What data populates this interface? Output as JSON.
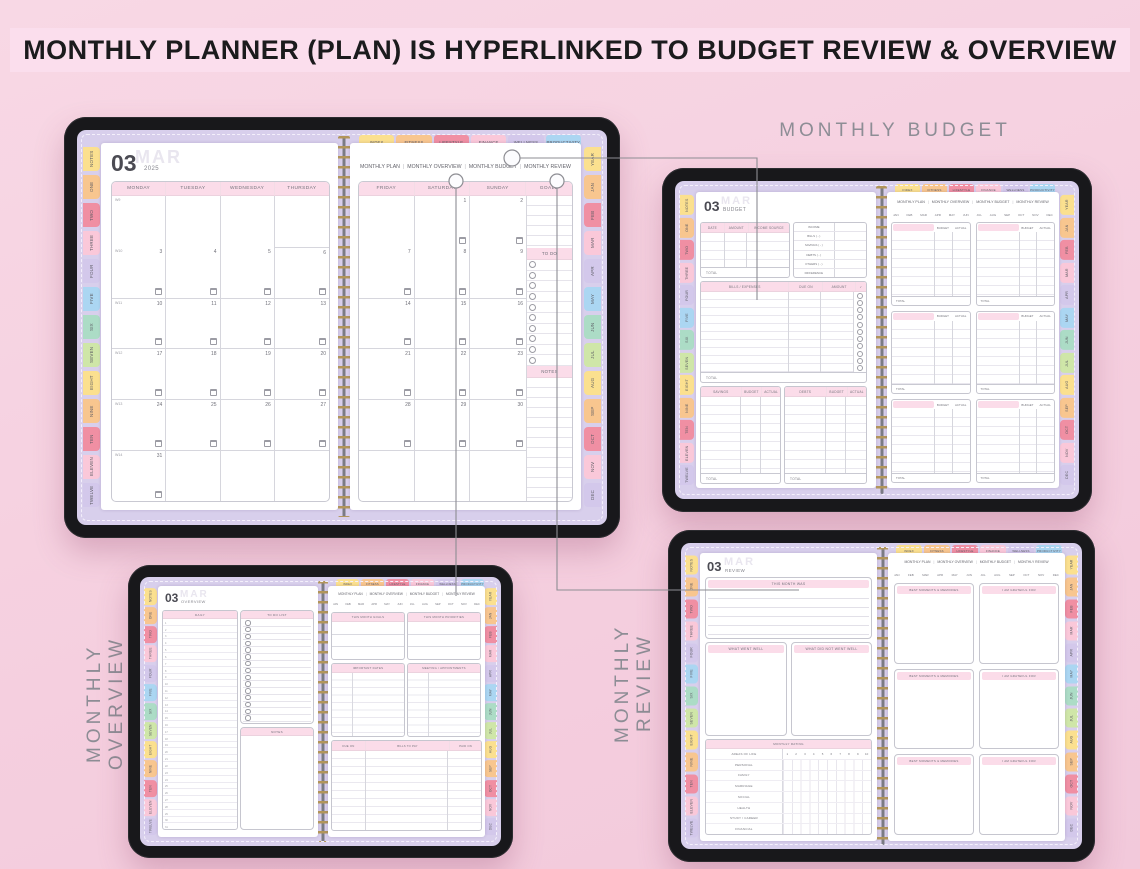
{
  "banner": {
    "title": "MONTHLY PLANNER (PLAN) IS HYPERLINKED TO BUDGET REVIEW & OVERVIEW"
  },
  "section_labels": {
    "budget": "MONTHLY BUDGET",
    "overview": "MONTHLY OVERVIEW",
    "review": "MONTHLY REVIEW"
  },
  "colors": {
    "background": "#F5CFDF",
    "banner_bg": "#FBDEED",
    "banner_text": "#1B1B1D",
    "tablet_frame": "#18181B",
    "cover": "#D8CFEC",
    "page": "#FFFFFF",
    "header_pink": "#FBDCE9",
    "muted_text": "#8D8D95",
    "grid_line": "#C9C9D2",
    "rule_line": "#E9E7EE",
    "ghost_text": "#E9E6EF",
    "connector": "#8D8D93",
    "spiral_coil": "#B2955A",
    "spiral_bar": "#7B7B84",
    "tab_palette": [
      "#FBE08F",
      "#F8C68F",
      "#F08FA3",
      "#FAC8D9",
      "#D3C8EB",
      "#ABD6F2",
      "#ACDCC6",
      "#CFE6A8"
    ]
  },
  "tabs": {
    "top": [
      "INDEX",
      "FITNESS",
      "LIFESTYLE",
      "FINANCE",
      "WELLNESS",
      "PRODUCTIVITY"
    ],
    "side": [
      "NOTES",
      "ONE",
      "TWO",
      "THREE",
      "FOUR",
      "FIVE",
      "SIX",
      "SEVEN",
      "EIGHT",
      "NINE",
      "TEN",
      "ELEVEN",
      "TWELVE"
    ],
    "months_side": [
      "YEAR",
      "JAN",
      "FEB",
      "MAR",
      "APR",
      "MAY",
      "JUN",
      "JUL",
      "AUG",
      "SEP",
      "OCT",
      "NOV",
      "DEC"
    ]
  },
  "nav_links": [
    "MONTHLY PLAN",
    "MONTHLY OVERVIEW",
    "MONTHLY BUDGET",
    "MONTHLY REVIEW"
  ],
  "months_row": [
    "JAN",
    "FEB",
    "MAR",
    "APR",
    "MAY",
    "JUN",
    "JUL",
    "AUG",
    "SEP",
    "OCT",
    "NOV",
    "DEC"
  ],
  "planner": {
    "month_number": "03",
    "month_ghost": "MAR",
    "year": "2025",
    "weekday_headers_left": [
      "MONDAY",
      "TUESDAY",
      "WEDNESDAY",
      "THURSDAY"
    ],
    "weekday_headers_right": [
      "FRIDAY",
      "SATURDAY",
      "SUNDAY"
    ],
    "goals_label": "GOALS",
    "todo_label": "TO DO",
    "notes_label": "NOTES",
    "todo_circle_count": 10,
    "weeks": [
      {
        "label": "W9",
        "left": [
          "",
          "",
          "",
          ""
        ],
        "right": [
          "",
          "1",
          "2"
        ]
      },
      {
        "label": "W10",
        "left": [
          "3",
          "4",
          "5",
          "6"
        ],
        "right": [
          "7",
          "8",
          "9"
        ]
      },
      {
        "label": "W11",
        "left": [
          "10",
          "11",
          "12",
          "13"
        ],
        "right": [
          "14",
          "15",
          "16"
        ]
      },
      {
        "label": "W12",
        "left": [
          "17",
          "18",
          "19",
          "20"
        ],
        "right": [
          "21",
          "22",
          "23"
        ]
      },
      {
        "label": "W13",
        "left": [
          "24",
          "25",
          "26",
          "27"
        ],
        "right": [
          "28",
          "29",
          "30"
        ]
      },
      {
        "label": "W14",
        "left": [
          "31",
          "",
          "",
          ""
        ],
        "right": [
          "",
          "",
          ""
        ]
      }
    ]
  },
  "budget": {
    "month_number": "03",
    "page_title": "BUDGET",
    "month_ghost": "MAR",
    "income_headers": [
      "DATE",
      "AMOUNT",
      "INCOME SOURCE"
    ],
    "summary_rows": [
      "INCOME",
      "BILLS ( - )",
      "SAVINGS ( - )",
      "DEBTS ( - )",
      "OTHERS ( - )",
      "DIFFERENCE"
    ],
    "bills_headers": [
      "BILLS / EXPENSES",
      "DUE ON",
      "AMOUNT",
      "✓"
    ],
    "bills_check_count": 11,
    "savings_headers": [
      "SAVINGS",
      "BUDGET",
      "ACTUAL"
    ],
    "debts_headers": [
      "DEBTS",
      "BUDGET",
      "ACTUAL"
    ],
    "category_col_headers": [
      "BUDGET",
      "ACTUAL"
    ],
    "category_box_count": 6,
    "total_label": "TOTAL"
  },
  "overview": {
    "month_number": "03",
    "page_title": "OVERVIEW",
    "month_ghost": "MAR",
    "daily_label": "DAILY",
    "daily_numbers": [
      "1",
      "2",
      "3",
      "4",
      "5",
      "6",
      "7",
      "8",
      "9",
      "10",
      "11",
      "12",
      "13",
      "14",
      "15",
      "16",
      "17",
      "18",
      "19",
      "20",
      "21",
      "22",
      "23",
      "24",
      "25",
      "26",
      "27",
      "28",
      "29",
      "30",
      "31"
    ],
    "todo_list_label": "TO DO LIST",
    "todo_circle_count": 15,
    "notes_label": "NOTES",
    "goals_label": "THIS MONTH GOALS",
    "priorities_label": "THIS MONTH PRIORITIES",
    "important_dates_label": "IMPORTANT DATES",
    "meetings_label": "MEETING / APPOINTMENTS",
    "bills_headers": [
      "DUE ON",
      "BILLS TO PAY",
      "PAID ON"
    ]
  },
  "review": {
    "month_number": "03",
    "page_title": "REVIEW",
    "month_ghost": "MAR",
    "month_was_label": "THIS MONTH WAS",
    "went_well_label": "WHAT WENT WELL",
    "not_well_label": "WHAT DID NOT WENT WELL",
    "rating_label": "MONTHLY RATING",
    "areas_header": "AREAS OF LIFE",
    "areas": [
      "PERSONAL",
      "FAMILY",
      "MARRIAGE",
      "SOCIAL",
      "HEALTH",
      "STUDY / CAREER",
      "FINANCIAL"
    ],
    "rating_scale": [
      "1",
      "2",
      "3",
      "4",
      "5",
      "6",
      "7",
      "8",
      "9",
      "10"
    ],
    "moments_label": "BEST MOMENTS & MEMORIES",
    "grateful_label": "I AM GRATEFUL FOR",
    "gratitude_row_count": 3
  }
}
